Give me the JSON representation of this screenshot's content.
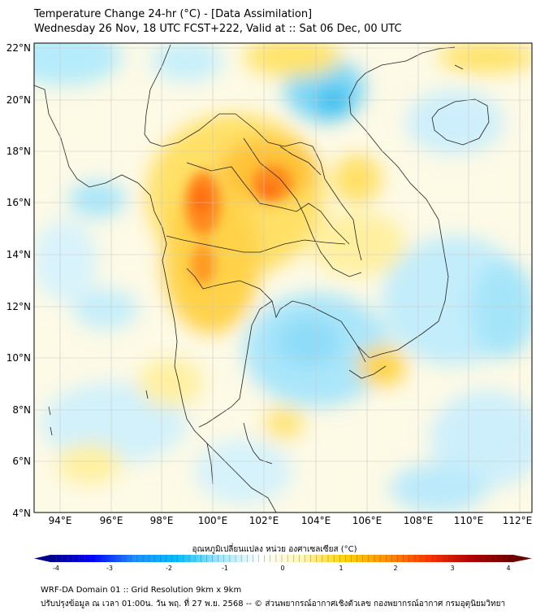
{
  "title_line1": "Temperature Change 24-hr (°C) - [Data Assimilation]",
  "title_line2": "Wednesday 26 Nov, 18 UTC FCST+222, Valid at :: Sat 06 Dec, 00 UTC",
  "lat_labels": [
    "22°N",
    "20°N",
    "18°N",
    "16°N",
    "14°N",
    "12°N",
    "10°N",
    "8°N",
    "6°N",
    "4°N"
  ],
  "lon_labels": [
    "94°E",
    "96°E",
    "98°E",
    "100°E",
    "102°E",
    "104°E",
    "106°E",
    "108°E",
    "110°E",
    "112°E"
  ],
  "colorbar": {
    "title": "อุณหภูมิเปลี่ยนแปลง หน่วย องศาเซลเซียส (°C)",
    "ticks": [
      "-4",
      "-3",
      "-2",
      "-1",
      "0",
      "1",
      "2",
      "3",
      "4"
    ],
    "colors": [
      "#00008b",
      "#0000ff",
      "#1e90ff",
      "#00bfff",
      "#9ee7fb",
      "#ffffff",
      "#fff6b0",
      "#ffd400",
      "#ff9000",
      "#ff3300",
      "#b30000",
      "#6b0000"
    ]
  },
  "footer_line1": "WRF-DA Domain 01 :: Grid Resolution 9km x 9km",
  "footer_line2": "ปรับปรุงข้อมูล ณ เวลา 01:00น. วัน พฤ. ที่ 27 พ.ย. 2568 -- © ส่วนพยากรณ์อากาศเชิงตัวเลข กองพยากรณ์อากาศ กรมอุตุนิยมวิทยา"
}
